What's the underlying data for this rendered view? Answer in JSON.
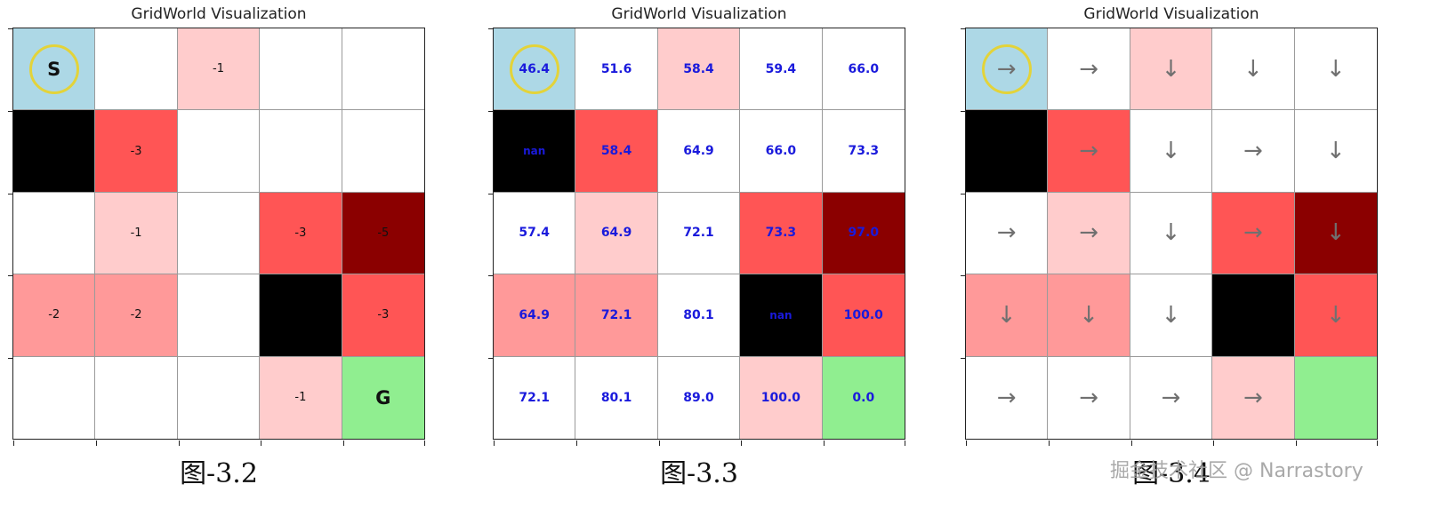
{
  "colors": {
    "start": "#add8e6",
    "goal": "#90ee90",
    "wall": "#000000",
    "empty": "#ffffff",
    "pen_1": "#ffcccc",
    "pen_2": "#ff9999",
    "pen_3": "#ff5555",
    "pen_5": "#8b0000",
    "start_ring": "#e3d33a",
    "value_text": "#1a1adc",
    "arrow_text": "#707070"
  },
  "grid_types": [
    [
      "start",
      "empty",
      "pen_1",
      "empty",
      "empty"
    ],
    [
      "wall",
      "pen_3",
      "empty",
      "empty",
      "empty"
    ],
    [
      "empty",
      "pen_1",
      "empty",
      "pen_3",
      "pen_5"
    ],
    [
      "pen_2",
      "pen_2",
      "empty",
      "wall",
      "pen_3"
    ],
    [
      "empty",
      "empty",
      "empty",
      "pen_1",
      "goal"
    ]
  ],
  "panels": [
    {
      "id": "rewards",
      "title": "GridWorld Visualization",
      "caption": "图-3.2",
      "kind": "reward",
      "cells": [
        [
          "S",
          "",
          "-1",
          "",
          ""
        ],
        [
          "",
          "-3",
          "",
          "",
          ""
        ],
        [
          "",
          "-1",
          "",
          "-3",
          "-5"
        ],
        [
          "-2",
          "-2",
          "",
          "",
          "-3"
        ],
        [
          "",
          "",
          "",
          "-1",
          "G"
        ]
      ]
    },
    {
      "id": "values",
      "title": "GridWorld Visualization",
      "caption": "图-3.3",
      "kind": "value",
      "cells": [
        [
          "46.4",
          "51.6",
          "58.4",
          "59.4",
          "66.0"
        ],
        [
          "nan",
          "58.4",
          "64.9",
          "66.0",
          "73.3"
        ],
        [
          "57.4",
          "64.9",
          "72.1",
          "73.3",
          "97.0"
        ],
        [
          "64.9",
          "72.1",
          "80.1",
          "nan",
          "100.0"
        ],
        [
          "72.1",
          "80.1",
          "89.0",
          "100.0",
          "0.0"
        ]
      ]
    },
    {
      "id": "policy",
      "title": "GridWorld Visualization",
      "caption": "图-3.4",
      "kind": "arrow",
      "cells": [
        [
          "→",
          "→",
          "↓",
          "↓",
          "↓"
        ],
        [
          "",
          "→",
          "↓",
          "→",
          "↓"
        ],
        [
          "→",
          "→",
          "↓",
          "→",
          "↓"
        ],
        [
          "↓",
          "↓",
          "↓",
          "",
          "↓"
        ],
        [
          "→",
          "→",
          "→",
          "→",
          ""
        ]
      ]
    }
  ],
  "watermark": "掘金技术社区 @ Narrastory"
}
